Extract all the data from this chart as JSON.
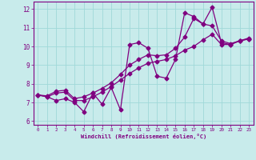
{
  "x_all": [
    0,
    1,
    2,
    3,
    4,
    5,
    6,
    7,
    8,
    9,
    10,
    11,
    12,
    13,
    14,
    15,
    16,
    17,
    18,
    19,
    20,
    21,
    22,
    23
  ],
  "line_volatile": [
    7.4,
    7.3,
    7.1,
    7.2,
    7.0,
    6.5,
    7.5,
    6.9,
    7.8,
    6.6,
    10.1,
    10.2,
    9.9,
    8.4,
    8.3,
    9.3,
    11.8,
    11.6,
    11.2,
    12.1,
    10.2,
    10.1,
    10.3,
    10.4
  ],
  "line_upper": [
    7.4,
    7.35,
    7.6,
    7.65,
    7.2,
    7.3,
    7.5,
    7.75,
    8.05,
    8.5,
    9.0,
    9.3,
    9.55,
    9.5,
    9.55,
    9.9,
    10.5,
    11.5,
    11.2,
    11.1,
    10.3,
    10.15,
    10.3,
    10.45
  ],
  "line_lower": [
    7.4,
    7.3,
    7.5,
    7.55,
    7.1,
    7.1,
    7.3,
    7.55,
    7.85,
    8.2,
    8.55,
    8.85,
    9.1,
    9.2,
    9.3,
    9.5,
    9.8,
    10.0,
    10.35,
    10.65,
    10.1,
    10.1,
    10.3,
    10.4
  ],
  "line_color": "#800080",
  "bg_color": "#c8ebeb",
  "grid_color": "#a0d8d8",
  "xlabel": "Windchill (Refroidissement éolien,°C)",
  "ylim": [
    5.8,
    12.4
  ],
  "xlim": [
    -0.5,
    23.5
  ],
  "yticks": [
    6,
    7,
    8,
    9,
    10,
    11,
    12
  ],
  "xticks": [
    0,
    1,
    2,
    3,
    4,
    5,
    6,
    7,
    8,
    9,
    10,
    11,
    12,
    13,
    14,
    15,
    16,
    17,
    18,
    19,
    20,
    21,
    22,
    23
  ]
}
